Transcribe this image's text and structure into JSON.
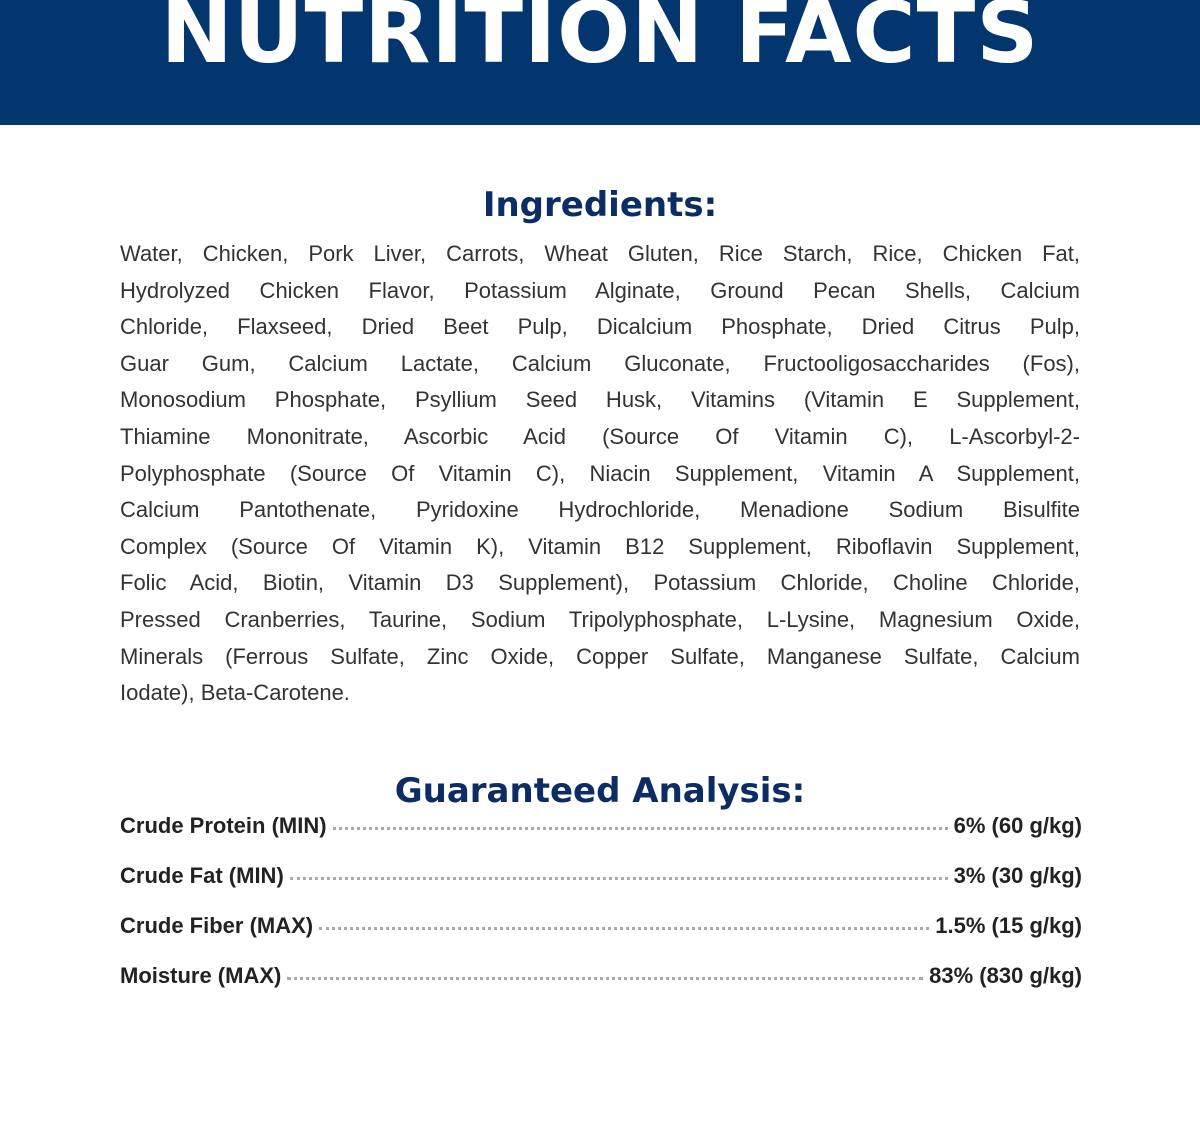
{
  "header": {
    "title": "NUTRITION FACTS",
    "background_color": "#03356f"
  },
  "ingredients": {
    "heading": "Ingredients:",
    "lines": [
      "Water, Chicken, Pork Liver, Carrots, Wheat Gluten, Rice Starch, Rice, Chicken Fat,",
      "Hydrolyzed Chicken Flavor, Potassium Alginate, Ground Pecan Shells, Calcium",
      "Chloride, Flaxseed, Dried Beet Pulp, Dicalcium Phosphate, Dried Citrus Pulp,",
      "Guar Gum, Calcium Lactate, Calcium Gluconate, Fructooligosaccharides (Fos),",
      "Monosodium Phosphate, Psyllium Seed Husk, Vitamins (Vitamin E Supplement,",
      "Thiamine Mononitrate, Ascorbic Acid (Source Of Vitamin C), L-Ascorbyl-2-",
      "Polyphosphate (Source Of Vitamin C), Niacin Supplement, Vitamin A Supplement,",
      "Calcium Pantothenate, Pyridoxine Hydrochloride, Menadione Sodium Bisulfite",
      "Complex (Source Of Vitamin K), Vitamin B12 Supplement, Riboflavin Supplement,",
      "Folic Acid, Biotin, Vitamin D3 Supplement), Potassium Chloride, Choline Chloride,",
      "Pressed Cranberries, Taurine, Sodium Tripolyphosphate, L-Lysine, Magnesium Oxide,",
      "Minerals (Ferrous Sulfate, Zinc Oxide, Copper Sulfate, Manganese Sulfate, Calcium",
      "Iodate), Beta-Carotene."
    ]
  },
  "analysis": {
    "heading": "Guaranteed Analysis:",
    "rows": [
      {
        "label": "Crude Protein (MIN)",
        "value": "6% (60 g/kg)"
      },
      {
        "label": "Crude Fat (MIN)",
        "value": "3% (30 g/kg)"
      },
      {
        "label": "Crude Fiber (MAX)",
        "value": "1.5% (15 g/kg)"
      },
      {
        "label": "Moisture (MAX)",
        "value": "83% (830 g/kg)"
      }
    ]
  }
}
